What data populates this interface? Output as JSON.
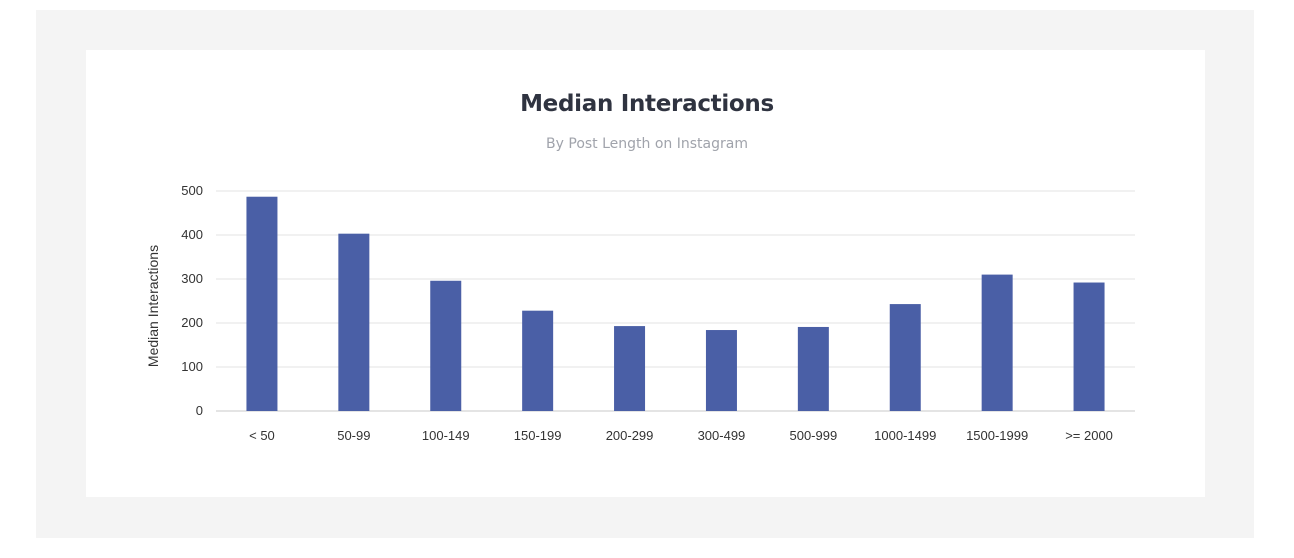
{
  "chart_data": {
    "type": "bar",
    "title": "Median Interactions",
    "subtitle": "By Post Length on Instagram",
    "xlabel": "",
    "ylabel": "Median Interactions",
    "categories": [
      "< 50",
      "50-99",
      "100-149",
      "150-199",
      "200-299",
      "300-499",
      "500-999",
      "1000-1499",
      "1500-1999",
      ">= 2000"
    ],
    "values": [
      487,
      403,
      296,
      228,
      193,
      184,
      191,
      243,
      310,
      292
    ],
    "ylim": [
      0,
      500
    ],
    "yticks": [
      "0",
      "100",
      "200",
      "300",
      "400",
      "500"
    ],
    "grid": true,
    "legend": "none",
    "colors": {
      "bar": "#4a5fa6",
      "grid": "#e3e3e3",
      "axis": "#c8c8c8"
    }
  }
}
